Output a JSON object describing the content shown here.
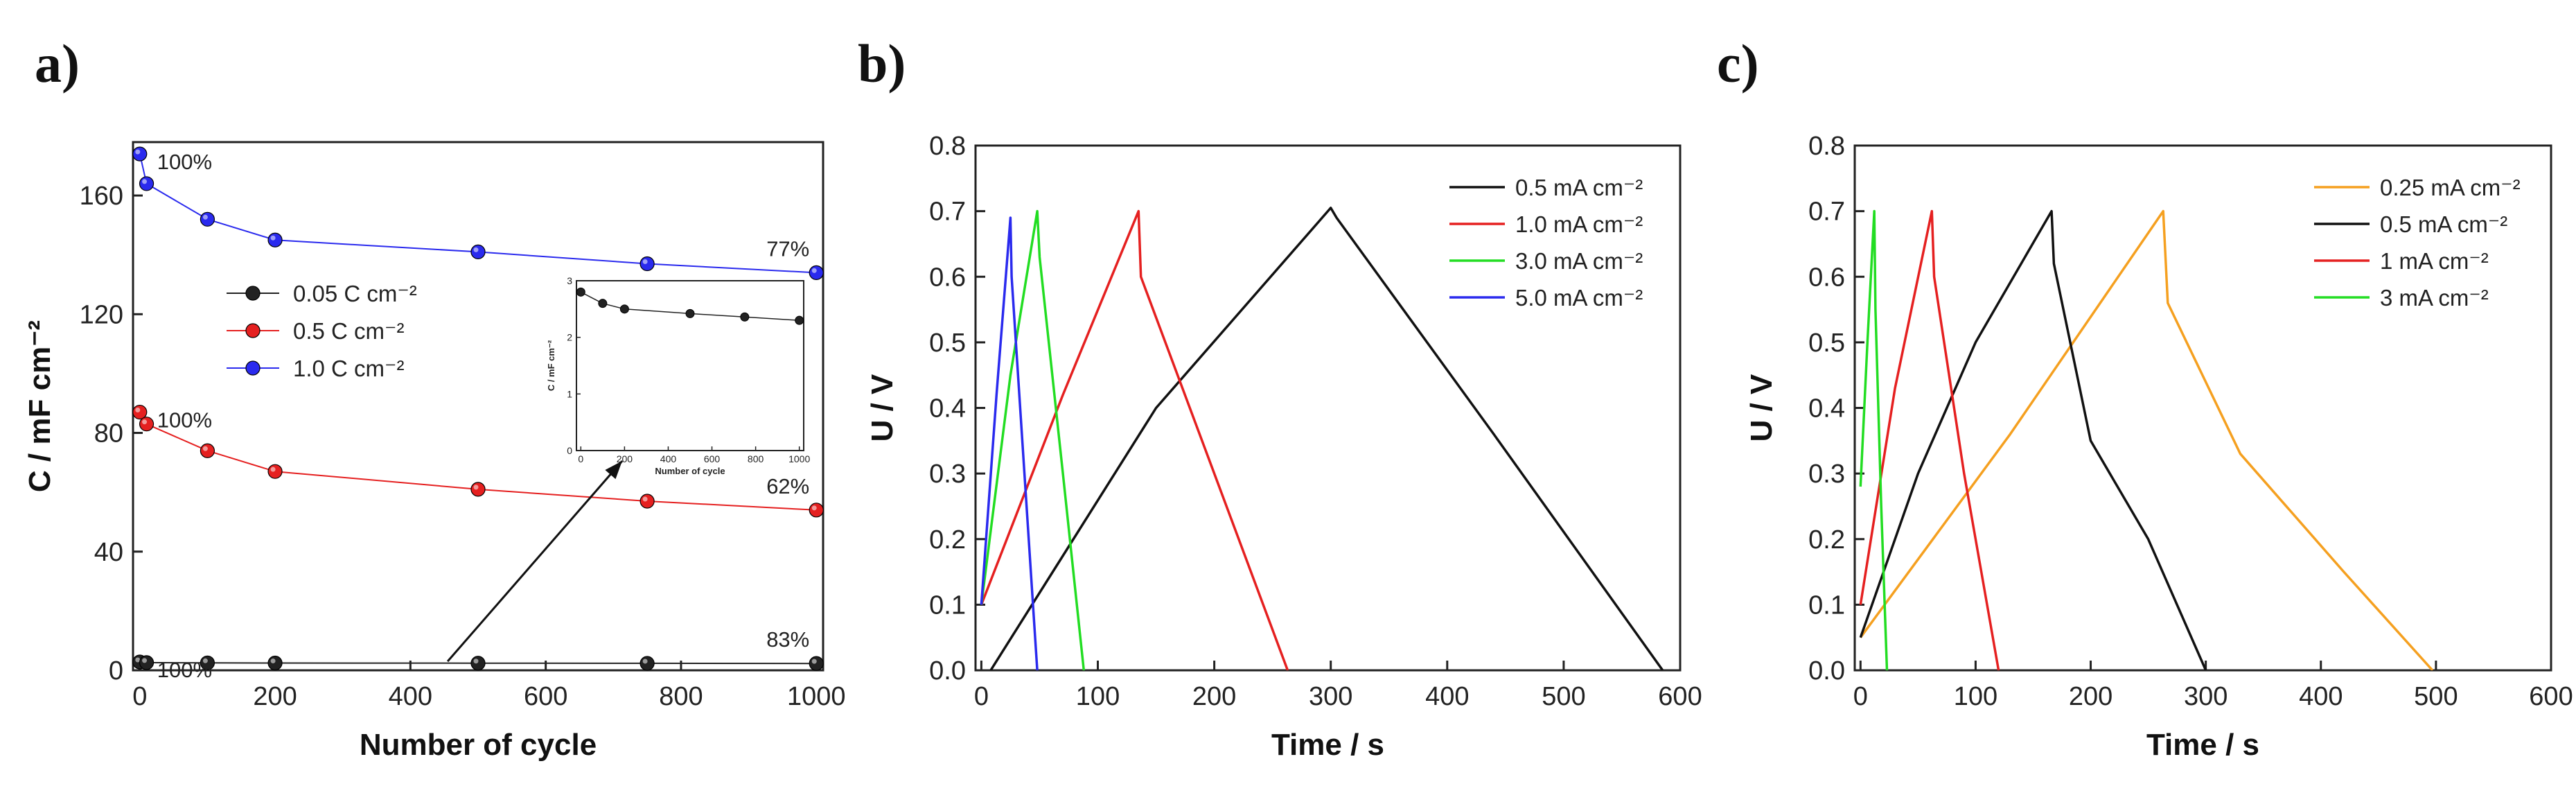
{
  "chart_data": [
    {
      "type": "line",
      "panel": "a)",
      "xlabel": "Number of cycle",
      "ylabel": "C / mF cm⁻²",
      "xlim": [
        -10,
        1010
      ],
      "ylim": [
        0,
        178
      ],
      "xticks": [
        0,
        200,
        400,
        600,
        800,
        1000
      ],
      "yticks": [
        0,
        40,
        80,
        120,
        160
      ],
      "legend_position": "center-left",
      "series": [
        {
          "name": "0.05 C cm⁻²",
          "color": "#222222",
          "x": [
            0,
            10,
            100,
            200,
            500,
            750,
            1000
          ],
          "y": [
            2.8,
            2.6,
            2.5,
            2.45,
            2.4,
            2.35,
            2.3
          ]
        },
        {
          "name": "0.5 C cm⁻²",
          "color": "#e52020",
          "x": [
            0,
            10,
            100,
            200,
            500,
            750,
            1000
          ],
          "y": [
            87,
            83,
            74,
            67,
            61,
            57,
            54
          ]
        },
        {
          "name": "1.0 C cm⁻²",
          "color": "#2a2aee",
          "x": [
            0,
            10,
            100,
            200,
            500,
            750,
            1000
          ],
          "y": [
            174,
            164,
            152,
            145,
            141,
            137,
            134
          ]
        }
      ],
      "annotations": [
        {
          "text": "100%",
          "series": 2,
          "point": 0,
          "side": "right"
        },
        {
          "text": "100%",
          "series": 1,
          "point": 0,
          "side": "right"
        },
        {
          "text": "100%",
          "series": 0,
          "point": 0,
          "side": "right"
        },
        {
          "text": "77%",
          "series": 2,
          "point": 6,
          "side": "left"
        },
        {
          "text": "62%",
          "series": 1,
          "point": 6,
          "side": "left"
        },
        {
          "text": "83%",
          "series": 0,
          "point": 6,
          "side": "left"
        }
      ],
      "inset": {
        "xlabel": "Number of cycle",
        "ylabel": "C / mF cm⁻²",
        "xlim": [
          -20,
          1020
        ],
        "ylim": [
          0,
          3
        ],
        "xticks": [
          0,
          200,
          400,
          600,
          800,
          1000
        ],
        "yticks": [
          0,
          1,
          2,
          3
        ],
        "x": [
          0,
          100,
          200,
          500,
          750,
          1000
        ],
        "y": [
          2.8,
          2.6,
          2.5,
          2.42,
          2.36,
          2.3
        ],
        "color": "#222222"
      }
    },
    {
      "type": "line",
      "panel": "b)",
      "xlabel": "Time / s",
      "ylabel": "U / V",
      "xlim": [
        -5,
        600
      ],
      "ylim": [
        0,
        0.8
      ],
      "xticks": [
        0,
        100,
        200,
        300,
        400,
        500,
        600
      ],
      "yticks": [
        0.0,
        0.1,
        0.2,
        0.3,
        0.4,
        0.5,
        0.6,
        0.7,
        0.8
      ],
      "legend_position": "top-right",
      "series": [
        {
          "name": "0.5 mA cm⁻²",
          "color": "#111111",
          "x": [
            8,
            150,
            300,
            305,
            440,
            585
          ],
          "y": [
            0.0,
            0.4,
            0.705,
            0.69,
            0.36,
            0.0
          ]
        },
        {
          "name": "1.0 mA cm⁻²",
          "color": "#e52020",
          "x": [
            0,
            70,
            135,
            137,
            200,
            263
          ],
          "y": [
            0.1,
            0.42,
            0.7,
            0.6,
            0.3,
            0.0
          ]
        },
        {
          "name": "3.0 mA cm⁻²",
          "color": "#22dd22",
          "x": [
            0,
            25,
            48,
            50,
            70,
            88
          ],
          "y": [
            0.1,
            0.45,
            0.7,
            0.63,
            0.3,
            0.0
          ]
        },
        {
          "name": "5.0 mA cm⁻²",
          "color": "#2a2aee",
          "x": [
            0,
            13,
            25,
            26,
            37,
            48
          ],
          "y": [
            0.1,
            0.42,
            0.69,
            0.6,
            0.3,
            0.0
          ]
        }
      ]
    },
    {
      "type": "line",
      "panel": "c)",
      "xlabel": "Time / s",
      "ylabel": "U / V",
      "xlim": [
        -5,
        600
      ],
      "ylim": [
        0,
        0.8
      ],
      "xticks": [
        0,
        100,
        200,
        300,
        400,
        500,
        600
      ],
      "yticks": [
        0.0,
        0.1,
        0.2,
        0.3,
        0.4,
        0.5,
        0.6,
        0.7,
        0.8
      ],
      "legend_position": "top-right",
      "series": [
        {
          "name": "0.25 mA cm⁻²",
          "color": "#f5a020",
          "x": [
            0,
            130,
            263,
            267,
            330,
            420,
            497
          ],
          "y": [
            0.05,
            0.36,
            0.7,
            0.56,
            0.33,
            0.15,
            0.0
          ]
        },
        {
          "name": "0.5 mA cm⁻²",
          "color": "#111111",
          "x": [
            0,
            50,
            100,
            166,
            168,
            200,
            250,
            300
          ],
          "y": [
            0.05,
            0.3,
            0.5,
            0.7,
            0.62,
            0.35,
            0.2,
            0.0
          ]
        },
        {
          "name": "1 mA cm⁻²",
          "color": "#e52020",
          "x": [
            0,
            30,
            62,
            64,
            90,
            120
          ],
          "y": [
            0.1,
            0.43,
            0.7,
            0.6,
            0.3,
            0.0
          ]
        },
        {
          "name": "3 mA cm⁻²",
          "color": "#22dd22",
          "x": [
            0,
            6,
            12,
            13,
            18,
            23
          ],
          "y": [
            0.28,
            0.5,
            0.7,
            0.55,
            0.25,
            0.0
          ]
        }
      ]
    }
  ]
}
